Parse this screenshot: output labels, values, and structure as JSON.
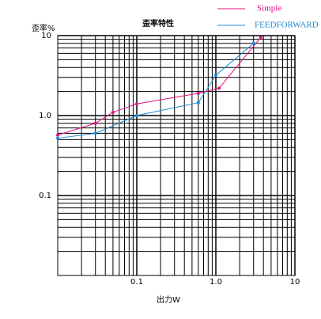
{
  "chart_data": {
    "type": "line",
    "title": "歪率特性",
    "x_label": "出力W",
    "y_label": "歪率%",
    "xlog": true,
    "ylog": true,
    "grid": true,
    "legend": "top-right",
    "xlim": [
      0.01,
      10
    ],
    "ylim": [
      0.01,
      10
    ],
    "xticks": [
      0.1,
      {
        "value": 1,
        "label": "1.0"
      },
      10
    ],
    "yticks": [
      0.1,
      {
        "value": 1,
        "label": "1.0"
      },
      10
    ],
    "series": [
      {
        "name": "Simple",
        "color": "#e0157f",
        "x": [
          0.01,
          0.03,
          0.05,
          0.1,
          0.6,
          1.1,
          3.7
        ],
        "values": [
          0.57,
          0.8,
          1.1,
          1.4,
          1.9,
          2.2,
          9.5
        ]
      },
      {
        "name": "FEEDFORWARD",
        "color": "#1a8ad4",
        "x": [
          0.01,
          0.03,
          0.1,
          0.6,
          1.0,
          3.0
        ],
        "values": [
          0.52,
          0.6,
          1.0,
          1.45,
          3.2,
          8.0
        ]
      }
    ]
  }
}
